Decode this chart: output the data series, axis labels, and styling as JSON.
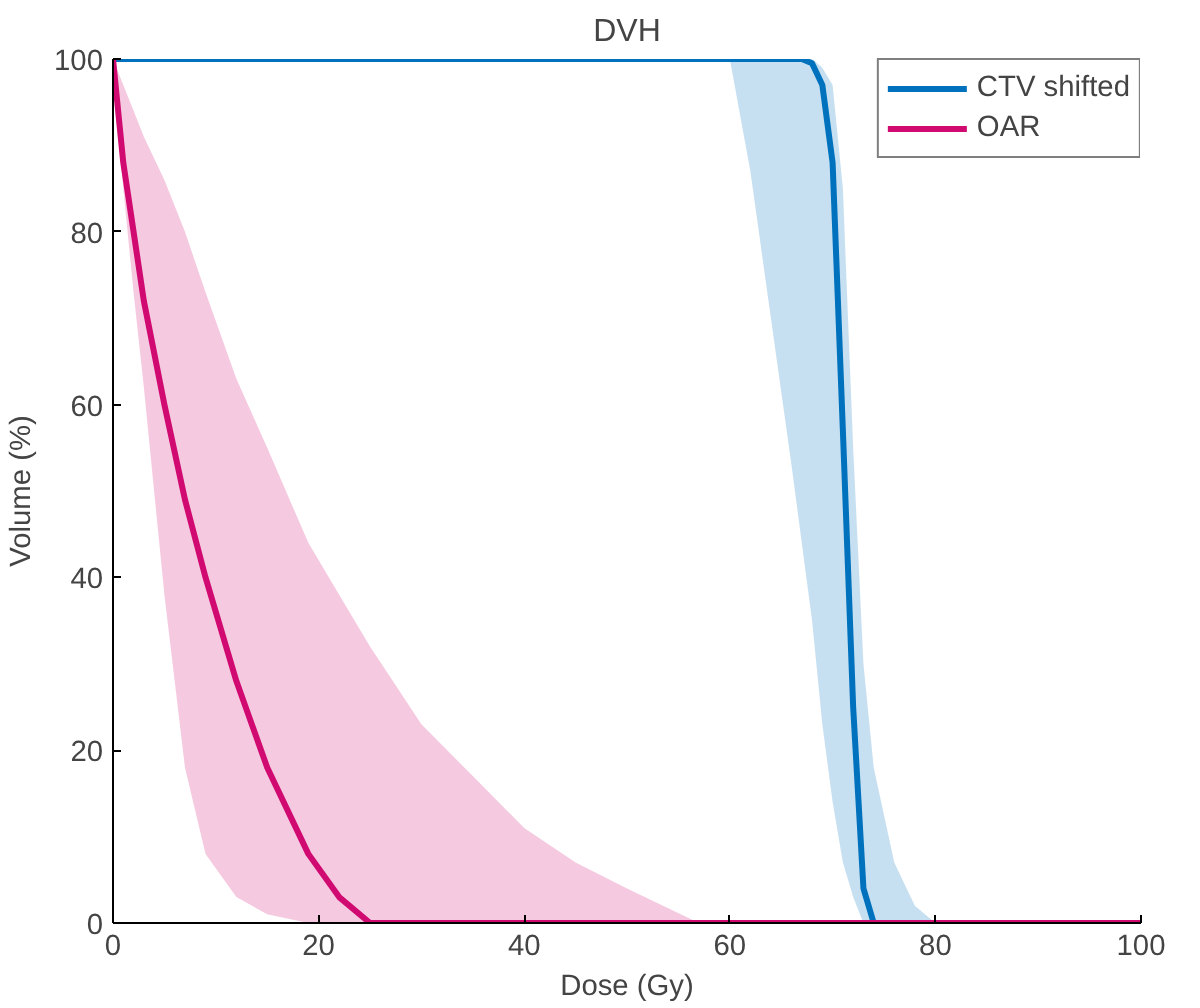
{
  "chart_data": {
    "type": "line",
    "title": "DVH",
    "xlabel": "Dose (Gy)",
    "ylabel": "Volume (%)",
    "xlim": [
      0,
      100
    ],
    "ylim": [
      0,
      100
    ],
    "xticks": [
      0,
      20,
      40,
      60,
      80,
      100
    ],
    "yticks": [
      0,
      20,
      40,
      60,
      80,
      100
    ],
    "grid": false,
    "legend": "top right",
    "series": [
      {
        "name": "CTV shifted",
        "color": "#0072bd",
        "x": [
          0,
          60,
          62,
          64,
          66,
          67,
          68,
          69,
          70,
          71,
          72,
          73,
          74,
          76,
          78,
          80,
          100
        ],
        "values": [
          100,
          100,
          100,
          100,
          100,
          100,
          99.5,
          97,
          88,
          57,
          25,
          4,
          0,
          null,
          null,
          null,
          null
        ],
        "lower": [
          100,
          100,
          87,
          70,
          53,
          44,
          35,
          23,
          14,
          7,
          3,
          0,
          0,
          0,
          0,
          0,
          0
        ],
        "upper": [
          100,
          100,
          100,
          100,
          100,
          100,
          100,
          99,
          97,
          85,
          55,
          30,
          18,
          7,
          2,
          0,
          0
        ]
      },
      {
        "name": "OAR",
        "color": "#d10a72",
        "x": [
          0,
          1,
          2,
          3,
          5,
          7,
          9,
          12,
          15,
          19,
          22,
          25,
          30,
          35,
          40,
          45,
          50,
          57,
          100
        ],
        "values": [
          100,
          88,
          80,
          72,
          60,
          49,
          40,
          28,
          18,
          8,
          3,
          0,
          0,
          0,
          0,
          0,
          0,
          0,
          0
        ],
        "lower": [
          100,
          85,
          73,
          62,
          38,
          18,
          8,
          3,
          1,
          0,
          0,
          0,
          0,
          0,
          0,
          0,
          0,
          0,
          null
        ],
        "upper": [
          100,
          97,
          94,
          91,
          86,
          80,
          73,
          63,
          55,
          44,
          38,
          32,
          23,
          17,
          11,
          7,
          4,
          0,
          null
        ]
      }
    ]
  }
}
